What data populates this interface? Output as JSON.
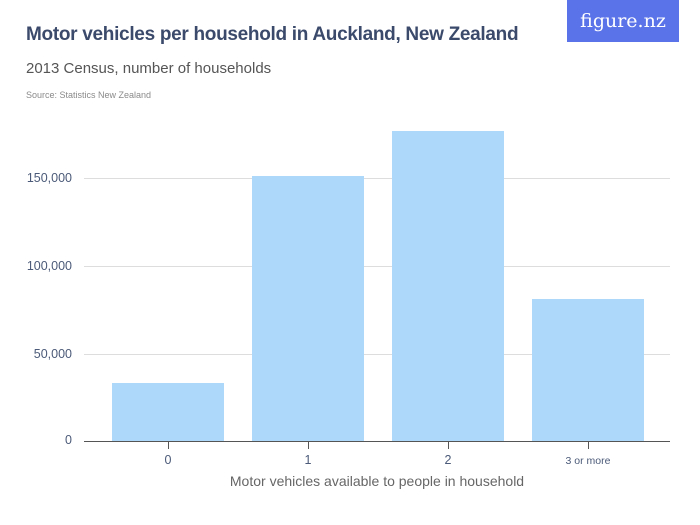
{
  "header": {
    "title": "Motor vehicles per household in Auckland, New Zealand",
    "subtitle": "2013 Census, number of households",
    "source": "Source: Statistics New Zealand",
    "logo": "figure.nz"
  },
  "colors": {
    "bar": "#add8f9",
    "title": "#3b4a6b",
    "logo_bg": "#5b73e8",
    "grid": "#dddddd"
  },
  "axis": {
    "y_ticks": [
      "0",
      "50,000",
      "100,000",
      "150,000"
    ],
    "x_ticks": [
      "0",
      "1",
      "2",
      "3 or more"
    ],
    "x_title": "Motor vehicles available to people in household"
  },
  "chart_data": {
    "type": "bar",
    "title": "Motor vehicles per household in Auckland, New Zealand",
    "subtitle": "2013 Census, number of households",
    "source": "Source: Statistics New Zealand",
    "categories": [
      "0",
      "1",
      "2",
      "3 or more"
    ],
    "values": [
      33500,
      151100,
      176700,
      81200
    ],
    "xlabel": "Motor vehicles available to people in household",
    "ylabel": "",
    "ylim": [
      0,
      180000
    ],
    "yticks": [
      0,
      50000,
      100000,
      150000
    ],
    "grid": true,
    "legend": null
  }
}
